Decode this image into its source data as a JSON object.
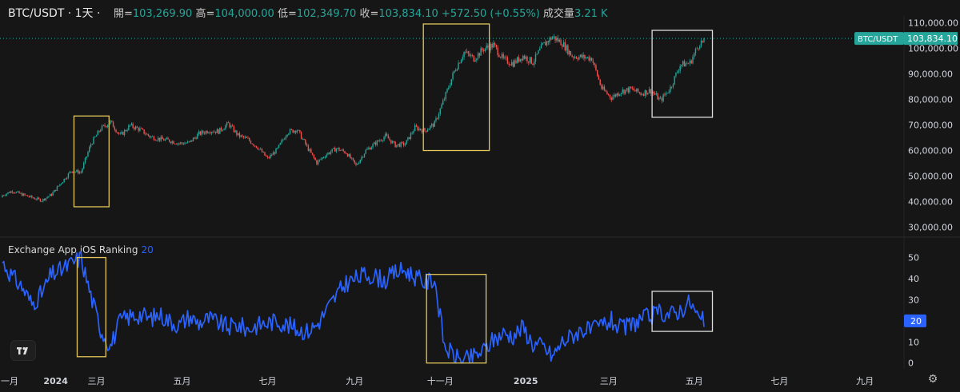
{
  "header": {
    "symbol": "BTC/USDT · 1天 ·",
    "open_label": "開=",
    "open": "103,269.90",
    "high_label": "高=",
    "high": "104,000.00",
    "low_label": "低=",
    "low": "102,349.70",
    "close_label": "收=",
    "close": "103,834.10",
    "change": "+572.50 (+0.55%)",
    "volume_label": "成交量",
    "volume": "3.21 K"
  },
  "indicator": {
    "title": "Exchange App iOS Ranking",
    "value": "20"
  },
  "colors": {
    "up": "#26a69a",
    "down": "#ef5350",
    "ranking_line": "#2962ff",
    "yellow_box": "#e3c75a",
    "white_box": "#dddddd",
    "background": "#161616"
  },
  "icons": [
    "tradingview-logo-icon",
    "settings-gear-icon"
  ],
  "chart_data": [
    {
      "type": "candlestick",
      "title": "BTC/USDT",
      "price_label": "BTC/USDT",
      "last_price": "103,834.10",
      "yticks": [
        "30,000.00",
        "40,000.00",
        "50,000.00",
        "60,000.00",
        "70,000.00",
        "80,000.00",
        "90,000.00",
        "100,000.00",
        "110,000.00"
      ],
      "ylim": [
        28000,
        112000
      ],
      "grid": false,
      "x": [
        "2023-12-25",
        "2024-01-01",
        "2024-01-08",
        "2024-01-15",
        "2024-01-22",
        "2024-01-29",
        "2024-02-05",
        "2024-02-12",
        "2024-02-19",
        "2024-02-26",
        "2024-03-04",
        "2024-03-11",
        "2024-03-18",
        "2024-03-25",
        "2024-04-01",
        "2024-04-08",
        "2024-04-15",
        "2024-04-22",
        "2024-04-29",
        "2024-05-06",
        "2024-05-13",
        "2024-05-20",
        "2024-05-27",
        "2024-06-03",
        "2024-06-10",
        "2024-06-17",
        "2024-06-24",
        "2024-07-01",
        "2024-07-08",
        "2024-07-15",
        "2024-07-22",
        "2024-07-29",
        "2024-08-05",
        "2024-08-12",
        "2024-08-19",
        "2024-08-26",
        "2024-09-02",
        "2024-09-09",
        "2024-09-16",
        "2024-09-23",
        "2024-09-30",
        "2024-10-07",
        "2024-10-14",
        "2024-10-21",
        "2024-10-28",
        "2024-11-04",
        "2024-11-11",
        "2024-11-18",
        "2024-11-25",
        "2024-12-02",
        "2024-12-09",
        "2024-12-16",
        "2024-12-23",
        "2024-12-30",
        "2025-01-06",
        "2025-01-13",
        "2025-01-20",
        "2025-01-27",
        "2025-02-03",
        "2025-02-10",
        "2025-02-17",
        "2025-02-24",
        "2025-03-03",
        "2025-03-10",
        "2025-03-17",
        "2025-03-24",
        "2025-03-31",
        "2025-04-07",
        "2025-04-14",
        "2025-04-21",
        "2025-04-28",
        "2025-05-05"
      ],
      "close": [
        42500,
        44200,
        42800,
        41600,
        40500,
        42800,
        47500,
        52000,
        51500,
        62500,
        68500,
        71200,
        65800,
        69800,
        68200,
        65500,
        64500,
        63900,
        62800,
        63000,
        66500,
        67800,
        67500,
        70500,
        65900,
        64300,
        61200,
        56800,
        60500,
        67200,
        68200,
        61500,
        55200,
        58600,
        60800,
        59200,
        54100,
        60000,
        62900,
        65700,
        62100,
        62500,
        69000,
        67800,
        70500,
        80400,
        91000,
        98500,
        96000,
        99800,
        101200,
        95500,
        94100,
        97000,
        94500,
        101000,
        104500,
        102000,
        97000,
        96500,
        96100,
        84300,
        80700,
        83200,
        84000,
        82300,
        83500,
        79600,
        84500,
        93500,
        94300,
        102300
      ],
      "annotations": [
        "yellow box 2024-02 rally",
        "yellow box 2024-11 rally",
        "white box 2025-04 to 2025-05"
      ]
    },
    {
      "type": "line",
      "title": "Exchange App iOS Ranking",
      "yticks": [
        "0",
        "10",
        "20",
        "30",
        "40",
        "50"
      ],
      "ylim": [
        -2,
        54
      ],
      "grid": false,
      "xticks": [
        "一月",
        "2024",
        "三月",
        "五月",
        "七月",
        "九月",
        "十一月",
        "2025",
        "三月",
        "五月",
        "七月",
        "九月"
      ],
      "last_value": "20",
      "x": [
        "2023-12-25",
        "2024-01-01",
        "2024-01-08",
        "2024-01-15",
        "2024-01-22",
        "2024-01-29",
        "2024-02-05",
        "2024-02-12",
        "2024-02-19",
        "2024-02-26",
        "2024-03-04",
        "2024-03-11",
        "2024-03-18",
        "2024-03-25",
        "2024-04-01",
        "2024-04-08",
        "2024-04-15",
        "2024-04-22",
        "2024-04-29",
        "2024-05-06",
        "2024-05-13",
        "2024-05-20",
        "2024-05-27",
        "2024-06-03",
        "2024-06-10",
        "2024-06-17",
        "2024-06-24",
        "2024-07-01",
        "2024-07-08",
        "2024-07-15",
        "2024-07-22",
        "2024-07-29",
        "2024-08-05",
        "2024-08-12",
        "2024-08-19",
        "2024-08-26",
        "2024-09-02",
        "2024-09-09",
        "2024-09-16",
        "2024-09-23",
        "2024-09-30",
        "2024-10-07",
        "2024-10-14",
        "2024-10-21",
        "2024-10-28",
        "2024-11-04",
        "2024-11-11",
        "2024-11-18",
        "2024-11-25",
        "2024-12-02",
        "2024-12-09",
        "2024-12-16",
        "2024-12-23",
        "2024-12-30",
        "2025-01-06",
        "2025-01-13",
        "2025-01-20",
        "2025-01-27",
        "2025-02-03",
        "2025-02-10",
        "2025-02-17",
        "2025-02-24",
        "2025-03-03",
        "2025-03-10",
        "2025-03-17",
        "2025-03-24",
        "2025-03-31",
        "2025-04-07",
        "2025-04-14",
        "2025-04-21",
        "2025-04-28",
        "2025-05-05"
      ],
      "values": [
        48,
        41,
        36,
        28,
        33,
        42,
        44,
        47,
        50,
        32,
        16,
        8,
        20,
        22,
        23,
        21,
        23,
        20,
        18,
        22,
        19,
        21,
        19,
        17,
        18,
        16,
        18,
        19,
        20,
        18,
        16,
        15,
        18,
        25,
        32,
        38,
        40,
        42,
        41,
        39,
        43,
        44,
        41,
        38,
        40,
        8,
        3,
        1,
        3,
        6,
        11,
        14,
        13,
        17,
        9,
        8,
        3,
        10,
        13,
        16,
        15,
        18,
        20,
        16,
        18,
        21,
        22,
        24,
        23,
        25,
        29,
        20
      ]
    }
  ]
}
